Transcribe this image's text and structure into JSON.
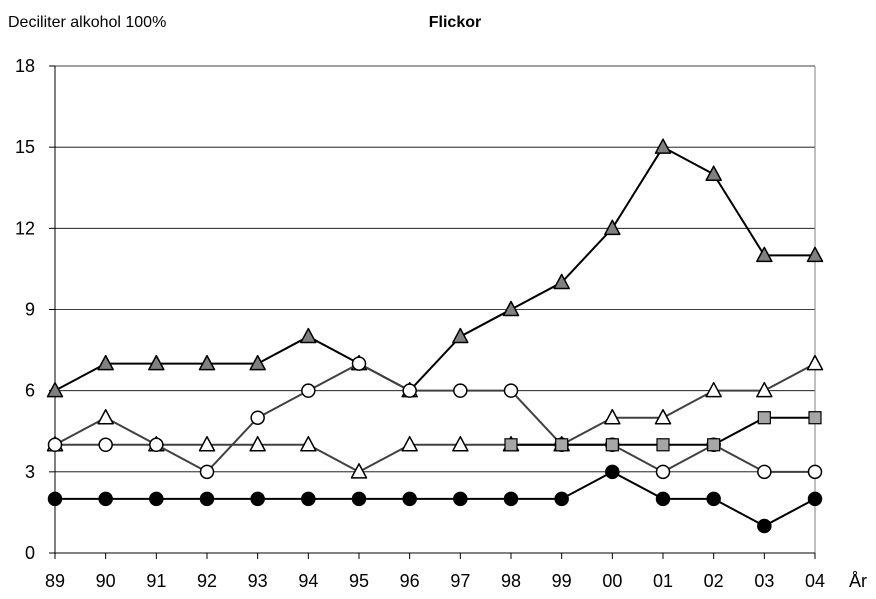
{
  "chart_data": {
    "type": "line",
    "title": "Flickor",
    "ylabel": "Deciliter alkohol 100%",
    "xlabel": "År",
    "categories": [
      "89",
      "90",
      "91",
      "92",
      "93",
      "94",
      "95",
      "96",
      "97",
      "98",
      "99",
      "00",
      "01",
      "02",
      "03",
      "04"
    ],
    "ylim": [
      0,
      18
    ],
    "yticks": [
      0,
      3,
      6,
      9,
      12,
      15,
      18
    ],
    "grid": "horizontal",
    "series": [
      {
        "marker": "triangle",
        "marker_fill": "#808080",
        "line_color": "#000000",
        "values": [
          6,
          7,
          7,
          7,
          7,
          8,
          7,
          6,
          8,
          9,
          10,
          12,
          15,
          14,
          11,
          11
        ]
      },
      {
        "marker": "triangle",
        "marker_fill": "#ffffff",
        "line_color": "#404040",
        "values": [
          4,
          5,
          4,
          4,
          4,
          4,
          3,
          4,
          4,
          4,
          4,
          5,
          5,
          6,
          6,
          7
        ]
      },
      {
        "marker": "circle",
        "marker_fill": "#ffffff",
        "line_color": "#404040",
        "values": [
          4,
          4,
          4,
          3,
          5,
          6,
          7,
          6,
          6,
          6,
          4,
          4,
          3,
          4,
          3,
          3
        ]
      },
      {
        "marker": "square",
        "marker_fill": "#a6a6a6",
        "line_color": "#000000",
        "values": [
          null,
          null,
          null,
          null,
          null,
          null,
          null,
          null,
          null,
          4,
          4,
          4,
          4,
          4,
          5,
          5
        ]
      },
      {
        "marker": "circle",
        "marker_fill": "#000000",
        "line_color": "#000000",
        "values": [
          2,
          2,
          2,
          2,
          2,
          2,
          2,
          2,
          2,
          2,
          2,
          3,
          2,
          2,
          1,
          2
        ]
      }
    ]
  }
}
